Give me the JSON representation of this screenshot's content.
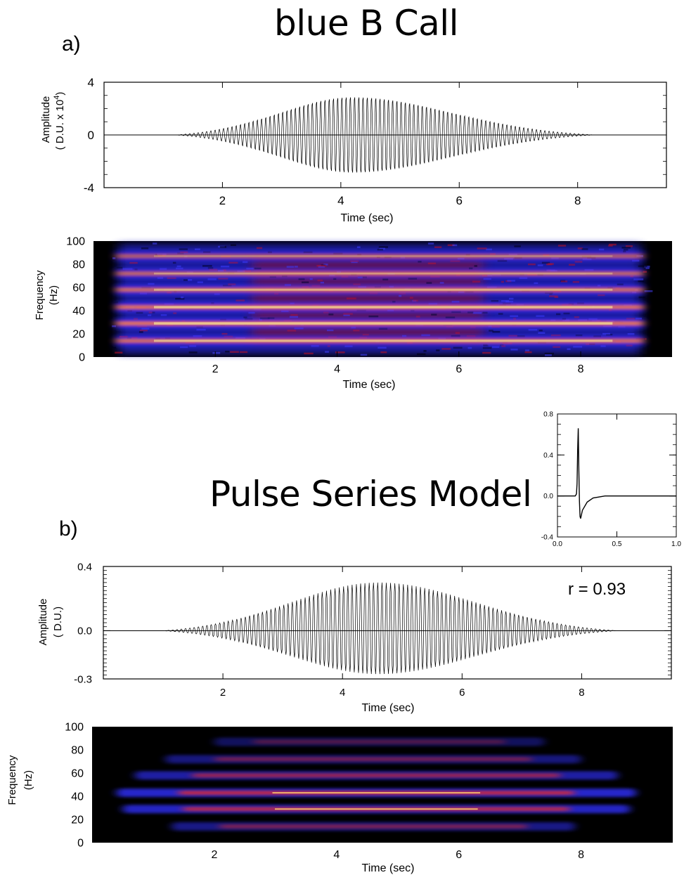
{
  "figure": {
    "title_a": "blue B Call",
    "title_b": "Pulse Series Model",
    "label_a": "a)",
    "label_b": "b)",
    "correlation_text": "r = 0.93"
  },
  "chart_data": [
    {
      "id": "a-waveform",
      "type": "line",
      "xlabel": "Time (sec)",
      "ylabel": "Amplitude",
      "ylabel2": "( D.U. x 10",
      "ylabel2_sup": "4",
      "ylabel2_end": ")",
      "xlim": [
        0,
        9.5
      ],
      "ylim": [
        -4,
        4
      ],
      "xticks": [
        "2",
        "4",
        "6",
        "8"
      ],
      "xtick_values": [
        2,
        4,
        6,
        8
      ],
      "yticks": [
        "4",
        "0",
        "-4"
      ],
      "ytick_values": [
        4,
        0,
        -4
      ],
      "signal": {
        "start": 1.2,
        "end": 8.3,
        "peak_time": 4.2,
        "peak_amplitude": 3.0,
        "trough_amplitude": -3.0,
        "pulse_rate_hz": 14
      }
    },
    {
      "id": "a-spectrogram",
      "type": "heatmap",
      "xlabel": "Time (sec)",
      "ylabel": "Frequency",
      "ylabel2": "(Hz)",
      "xlim": [
        0,
        9.5
      ],
      "ylim": [
        0,
        100
      ],
      "xticks": [
        "2",
        "4",
        "6",
        "8"
      ],
      "xtick_values": [
        2,
        4,
        6,
        8
      ],
      "yticks": [
        "100",
        "80",
        "60",
        "40",
        "20",
        "0"
      ],
      "ytick_values": [
        100,
        80,
        60,
        40,
        20,
        0
      ],
      "harmonics_hz": [
        14,
        29,
        43,
        58,
        72,
        87
      ],
      "harmonic_intensity": [
        0.85,
        1.0,
        0.95,
        0.75,
        0.6,
        0.45
      ],
      "time_span": [
        0.3,
        9.1
      ],
      "colors": {
        "background": "#000000",
        "low": "#1a1acc",
        "mid": "#e00000",
        "high": "#ffff80"
      }
    },
    {
      "id": "inset-pulse",
      "type": "line",
      "xlim": [
        0,
        1
      ],
      "ylim": [
        -0.4,
        0.8
      ],
      "xticks": [
        "0.0",
        "0.5",
        "1.0"
      ],
      "xtick_values": [
        0,
        0.5,
        1
      ],
      "yticks": [
        "0.8",
        "0.4",
        "0.0",
        "-0.4"
      ],
      "ytick_values": [
        0.8,
        0.4,
        0,
        -0.4
      ],
      "points": [
        [
          0,
          0
        ],
        [
          0.15,
          0
        ],
        [
          0.16,
          0.02
        ],
        [
          0.165,
          0.12
        ],
        [
          0.17,
          0.45
        ],
        [
          0.175,
          0.66
        ],
        [
          0.18,
          0.25
        ],
        [
          0.185,
          -0.05
        ],
        [
          0.19,
          -0.2
        ],
        [
          0.195,
          -0.22
        ],
        [
          0.21,
          -0.14
        ],
        [
          0.25,
          -0.06
        ],
        [
          0.3,
          -0.02
        ],
        [
          0.4,
          0
        ],
        [
          1.0,
          0
        ]
      ]
    },
    {
      "id": "b-waveform",
      "type": "line",
      "xlabel": "Time (sec)",
      "ylabel": "Amplitude",
      "ylabel2": "( D.U.)",
      "xlim": [
        0,
        9.5
      ],
      "ylim": [
        -0.3,
        0.4
      ],
      "xticks": [
        "2",
        "4",
        "6",
        "8"
      ],
      "xtick_values": [
        2,
        4,
        6,
        8
      ],
      "yticks": [
        "0.4",
        "0.0",
        "-0.3"
      ],
      "ytick_values": [
        0.4,
        0,
        -0.3
      ],
      "signal": {
        "start": 1.0,
        "end": 8.6,
        "peak_time": 4.6,
        "peak_amplitude": 0.3,
        "trough_amplitude": -0.27,
        "pulse_rate_hz": 14
      }
    },
    {
      "id": "b-spectrogram",
      "type": "heatmap",
      "xlabel": "Time (sec)",
      "ylabel": "Frequency",
      "ylabel2": "(Hz)",
      "xlim": [
        0,
        9.5
      ],
      "ylim": [
        0,
        100
      ],
      "xticks": [
        "2",
        "4",
        "6",
        "8"
      ],
      "xtick_values": [
        2,
        4,
        6,
        8
      ],
      "yticks": [
        "100",
        "80",
        "60",
        "40",
        "20",
        "0"
      ],
      "ytick_values": [
        100,
        80,
        60,
        40,
        20,
        0
      ],
      "bands": [
        {
          "freq": 14,
          "start": 1.3,
          "end": 7.9,
          "intensity": 0.55
        },
        {
          "freq": 29,
          "start": 0.5,
          "end": 8.8,
          "intensity": 0.85
        },
        {
          "freq": 43,
          "start": 0.4,
          "end": 8.9,
          "intensity": 0.9
        },
        {
          "freq": 58,
          "start": 0.7,
          "end": 8.6,
          "intensity": 0.7
        },
        {
          "freq": 72,
          "start": 1.2,
          "end": 8.0,
          "intensity": 0.5
        },
        {
          "freq": 87,
          "start": 2.0,
          "end": 7.4,
          "intensity": 0.35
        }
      ],
      "colors": {
        "background": "#000000",
        "low": "#1a1acc",
        "mid": "#e00000",
        "high": "#ffff80"
      }
    }
  ]
}
